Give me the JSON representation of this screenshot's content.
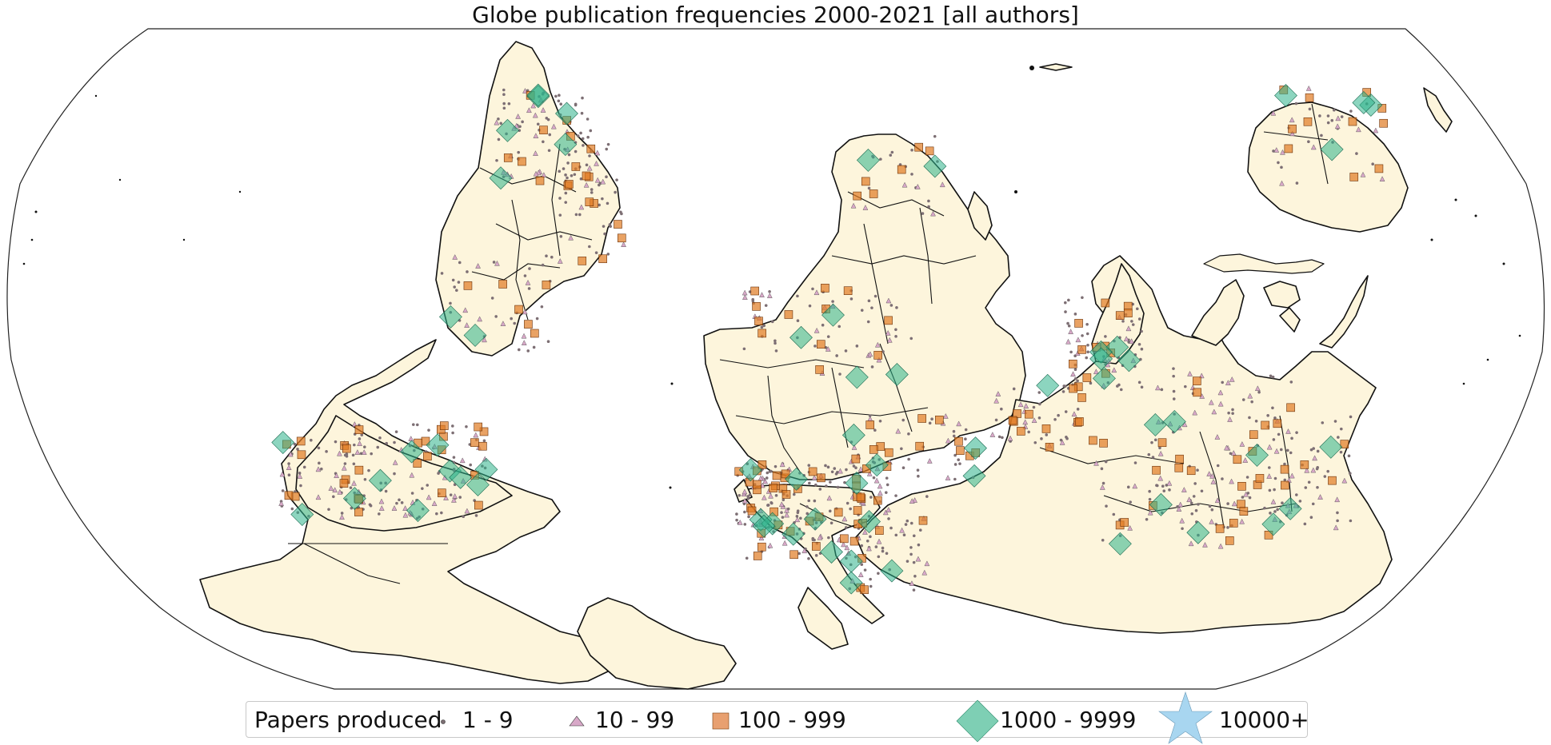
{
  "title": "Globe publication frequencies 2000-2021 [all authors]",
  "colors": {
    "land": "#fdf5dc",
    "ocean": "#ffffff",
    "border": "#111111",
    "dot": "#7d6f74",
    "triangle": "#d8a8c8",
    "square": "#e07b22",
    "diamond": "#2db38a",
    "star": "#8ec9ec"
  },
  "legend": {
    "title": "Papers produced",
    "items": [
      {
        "label": "1 - 9",
        "icon": "small-dot"
      },
      {
        "label": "10 - 99",
        "icon": "triangle"
      },
      {
        "label": "100 - 999",
        "icon": "square"
      },
      {
        "label": "1000 - 9999",
        "icon": "diamond"
      },
      {
        "label": "10000+",
        "icon": "star"
      }
    ]
  }
}
